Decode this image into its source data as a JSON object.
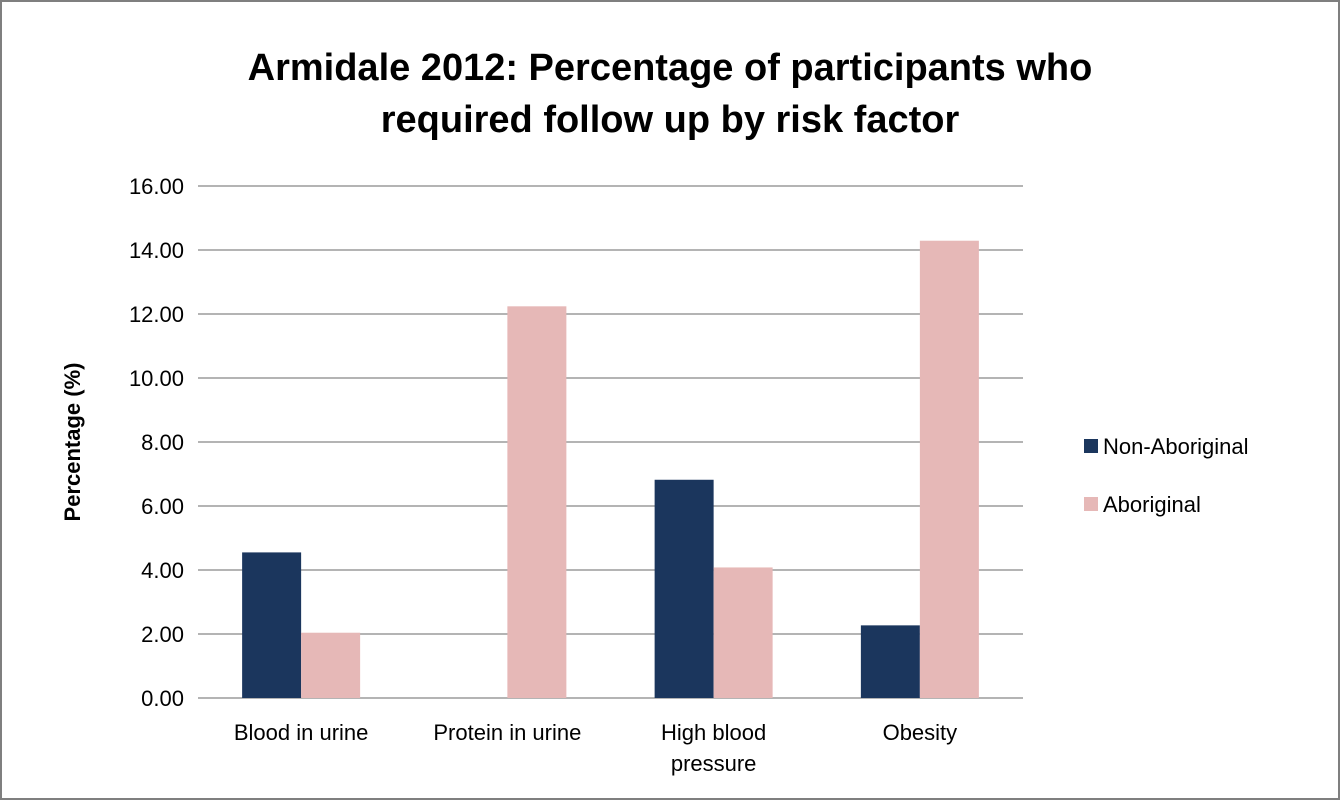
{
  "chart_data": {
    "type": "bar",
    "title_lines": [
      "Armidale 2012: Percentage of participants who",
      "required follow up by risk factor"
    ],
    "xlabel": "",
    "ylabel": "Percentage (%)",
    "ylim": [
      0,
      16
    ],
    "yticks": [
      "0.00",
      "2.00",
      "4.00",
      "6.00",
      "8.00",
      "10.00",
      "12.00",
      "14.00",
      "16.00"
    ],
    "ytick_values": [
      0,
      2,
      4,
      6,
      8,
      10,
      12,
      14,
      16
    ],
    "categories": [
      [
        "Blood in urine"
      ],
      [
        "Protein in urine"
      ],
      [
        "High blood",
        "pressure"
      ],
      [
        "Obesity"
      ]
    ],
    "series": [
      {
        "name": "Non-Aboriginal",
        "color": "#1b365d",
        "values": [
          4.55,
          0,
          6.82,
          2.27
        ]
      },
      {
        "name": "Aboriginal",
        "color": "#e6b8b7",
        "values": [
          2.04,
          12.24,
          4.08,
          14.29
        ]
      }
    ],
    "grid": true,
    "legend_position": "right"
  }
}
